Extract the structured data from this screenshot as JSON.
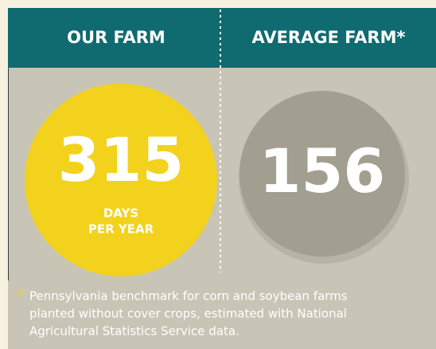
{
  "header": {
    "left": "OUR FARM",
    "right": "AVERAGE FARM*"
  },
  "our_farm": {
    "value": 315,
    "unit": [
      "DAYS",
      "PER YEAR"
    ]
  },
  "average_farm": {
    "value": 156
  },
  "footnote": {
    "marker": "*",
    "lines": [
      "Pennsylvania benchmark for corn and soybean farms",
      "planted without cover crops, estimated with National",
      "Agricultural Statistics Service data."
    ]
  }
}
